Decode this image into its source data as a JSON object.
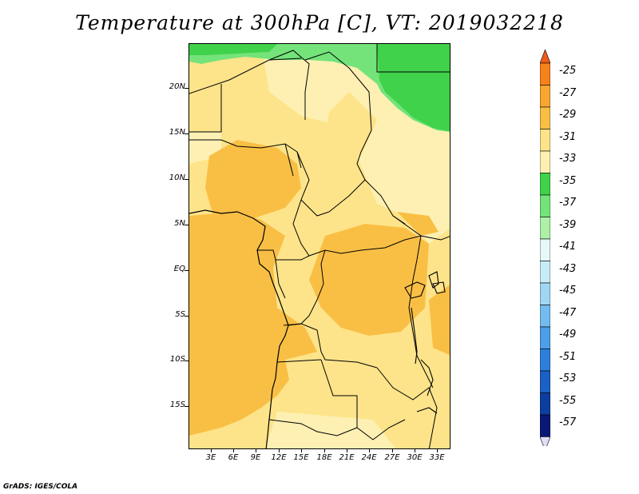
{
  "title": "Temperature at 300hPa [C], VT: 2019032218",
  "map": {
    "lat_labels": [
      "20N",
      "15N",
      "10N",
      "5N",
      "EQ",
      "5S",
      "10S",
      "15S"
    ],
    "lon_labels": [
      "3E",
      "6E",
      "9E",
      "12E",
      "15E",
      "18E",
      "21E",
      "24E",
      "27E",
      "30E",
      "33E"
    ],
    "dominant_field_colors": {
      "warm_west": "#f9bf45",
      "mid": "#fde48a",
      "cool_east": "#fdf0b2",
      "north_band": "#3fd24a",
      "north_band_light": "#74e37a"
    }
  },
  "colorbar": {
    "labels": [
      "-25",
      "-27",
      "-29",
      "-31",
      "-33",
      "-35",
      "-37",
      "-39",
      "-41",
      "-43",
      "-45",
      "-47",
      "-49",
      "-51",
      "-53",
      "-55",
      "-57"
    ],
    "colors": [
      "#f05a1a",
      "#f7821c",
      "#f9a631",
      "#f9bf45",
      "#fde48a",
      "#fdf0b2",
      "#3fd24a",
      "#74e37a",
      "#aef0a6",
      "#e5faf8",
      "#c7ecf8",
      "#a0d6f4",
      "#74bbef",
      "#4c9ee6",
      "#2e7fdb",
      "#1b60c4",
      "#0c3ea0",
      "#0a1875",
      "#e0e0f5"
    ]
  },
  "footer": "GrADS: IGES/COLA"
}
